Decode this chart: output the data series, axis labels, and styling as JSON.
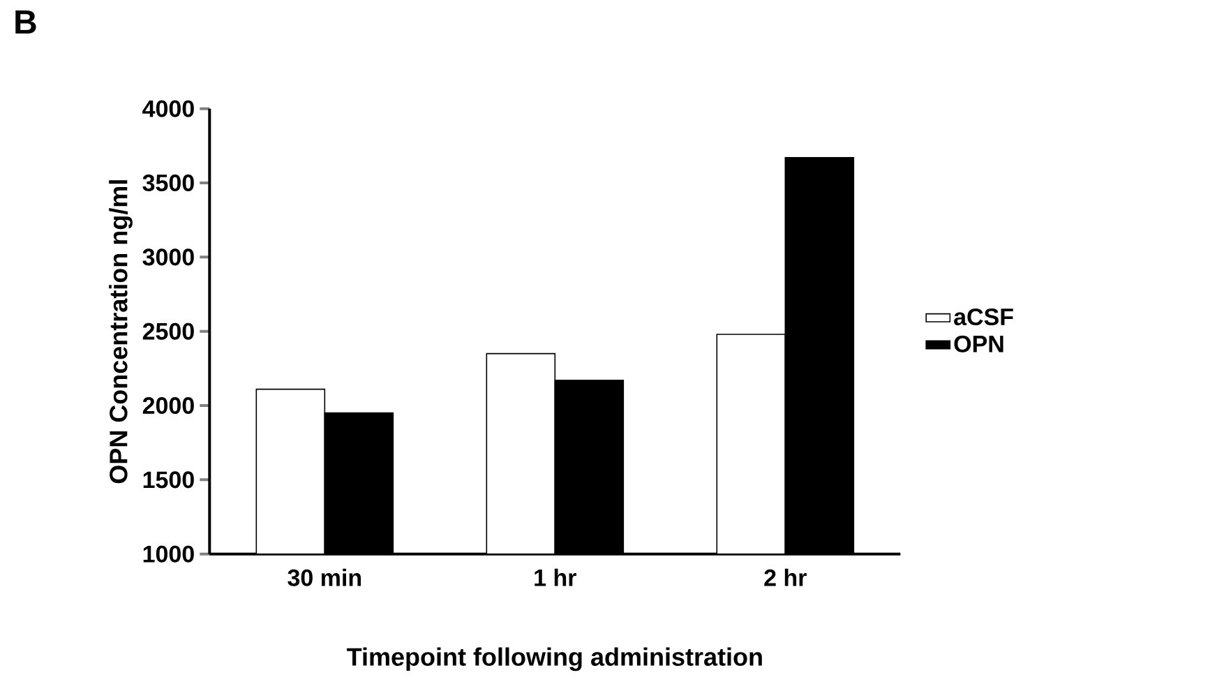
{
  "chart_data": {
    "type": "bar",
    "xlabel": "Timepoint following administration",
    "ylabel": "OPN Concentration ng/ml",
    "annotations": [
      "B"
    ],
    "categories": [
      "30 min",
      "1 hr",
      "2 hr"
    ],
    "series": [
      {
        "name": "aCSF",
        "color": "#ffffff",
        "values": [
          2110,
          2350,
          2480
        ]
      },
      {
        "name": "OPN",
        "color": "#000000",
        "values": [
          1950,
          2170,
          3670
        ]
      }
    ],
    "ylim": [
      1000,
      4000
    ],
    "yticks": [
      1000,
      1500,
      2000,
      2500,
      3000,
      3500,
      4000
    ],
    "grid": false,
    "legend": "right"
  }
}
